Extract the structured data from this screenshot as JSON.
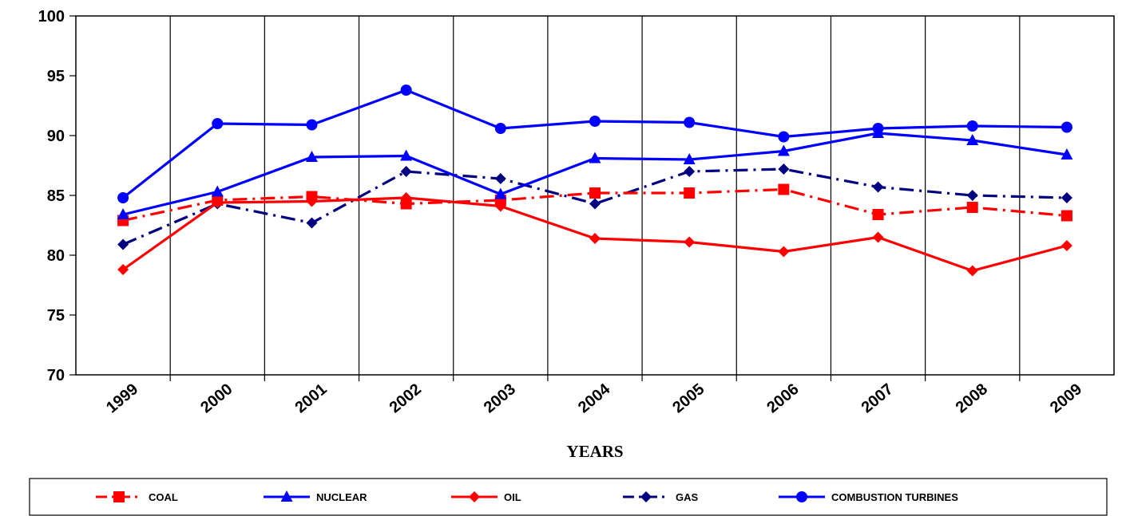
{
  "chart_data": {
    "type": "line",
    "x": [
      "1999",
      "2000",
      "2001",
      "2002",
      "2003",
      "2004",
      "2005",
      "2006",
      "2007",
      "2008",
      "2009"
    ],
    "xlabel": "YEARS",
    "ylabel": "",
    "ylim": [
      70,
      100
    ],
    "yticks": [
      70,
      75,
      80,
      85,
      90,
      95,
      100
    ],
    "grid": "vertical",
    "legend_position": "bottom",
    "series": [
      {
        "name": "COAL",
        "color": "#ff0000",
        "marker": "square",
        "dash": "dash-dot",
        "values": [
          82.9,
          84.6,
          84.9,
          84.3,
          84.6,
          85.2,
          85.2,
          85.5,
          83.4,
          84.0,
          83.3
        ]
      },
      {
        "name": "NUCLEAR",
        "color": "#0000ff",
        "marker": "triangle",
        "dash": "solid",
        "values": [
          83.4,
          85.3,
          88.2,
          88.3,
          85.1,
          88.1,
          88.0,
          88.7,
          90.2,
          89.6,
          88.4
        ]
      },
      {
        "name": "OIL",
        "color": "#ff0000",
        "marker": "diamond",
        "dash": "solid",
        "values": [
          78.8,
          84.4,
          84.5,
          84.8,
          84.1,
          81.4,
          81.1,
          80.3,
          81.5,
          78.7,
          80.8
        ]
      },
      {
        "name": "GAS",
        "color": "#000080",
        "marker": "diamond",
        "dash": "dash-dot",
        "values": [
          80.9,
          84.3,
          82.7,
          87.0,
          86.4,
          84.3,
          87.0,
          87.2,
          85.7,
          85.0,
          84.8
        ]
      },
      {
        "name": "COMBUSTION TURBINES",
        "color": "#0000ff",
        "marker": "circle",
        "dash": "solid",
        "values": [
          84.8,
          91.0,
          90.9,
          93.8,
          90.6,
          91.2,
          91.1,
          89.9,
          90.6,
          90.8,
          90.7
        ]
      }
    ]
  }
}
